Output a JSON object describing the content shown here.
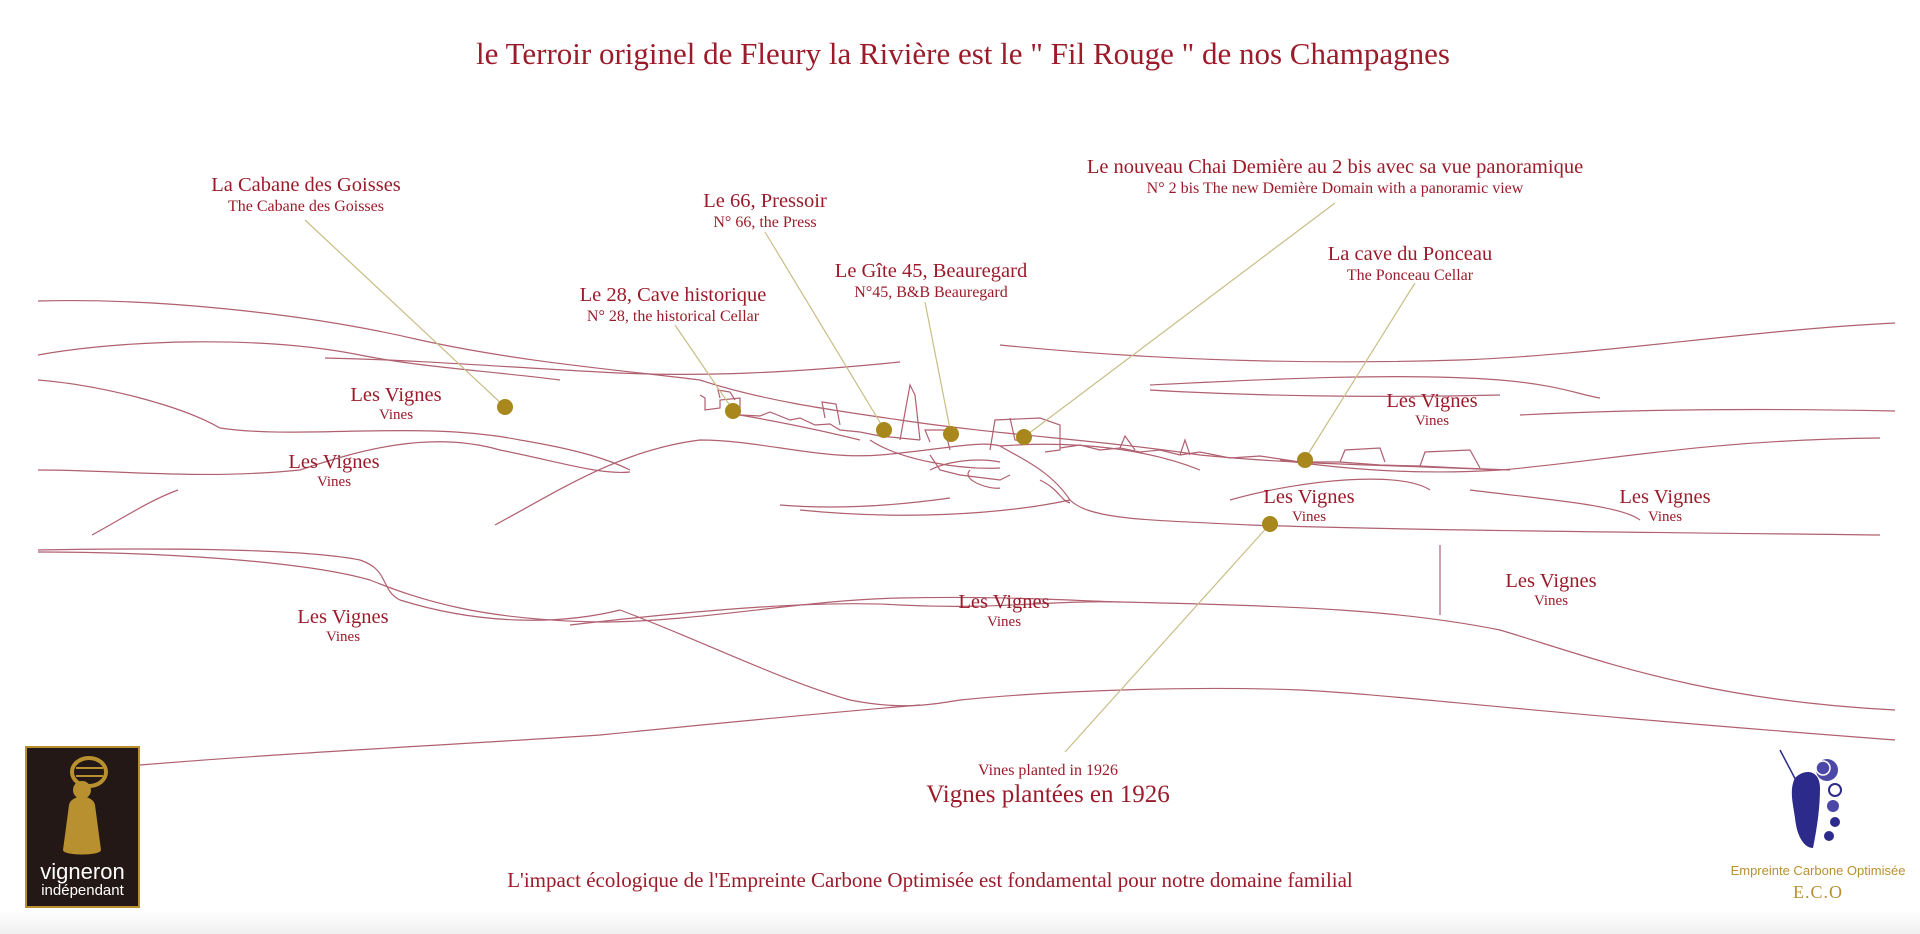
{
  "title": "le Terroir originel de Fleury la Rivière est le \" Fil Rouge \" de nos Champagnes",
  "colors": {
    "text": "#9b1b2a",
    "line": "#b06070",
    "leader": "#c9bd86",
    "dot": "#a8881c",
    "badge_bg": "#231815",
    "badge_accent": "#b8902f",
    "eco_blue": "#2c2a8a"
  },
  "places": [
    {
      "name": "La Cabane des Goisses",
      "sub": "The Cabane des Goisses"
    },
    {
      "name": "Le 66, Pressoir",
      "sub": "N° 66, the Press"
    },
    {
      "name": "Le nouveau Chai Demière au 2 bis avec sa vue panoramique",
      "sub": "N° 2 bis The new Demière Domain with a panoramic view"
    },
    {
      "name": "La cave du Ponceau",
      "sub": "The Ponceau Cellar"
    },
    {
      "name": "Le Gîte 45, Beauregard",
      "sub": "N°45, B&B Beauregard"
    },
    {
      "name": "Le 28, Cave historique",
      "sub": "N° 28, the historical Cellar"
    }
  ],
  "vines": [
    {
      "name": "Les Vignes",
      "sub": "Vines"
    },
    {
      "name": "Les Vignes",
      "sub": "Vines"
    },
    {
      "name": "Les Vignes",
      "sub": "Vines"
    },
    {
      "name": "Les Vignes",
      "sub": "Vines"
    },
    {
      "name": "Les Vignes",
      "sub": "Vines"
    },
    {
      "name": "Les Vignes",
      "sub": "Vines"
    },
    {
      "name": "Les Vignes",
      "sub": "Vines"
    },
    {
      "name": "Les Vignes",
      "sub": "Vines"
    }
  ],
  "planted": {
    "sub": "Vines planted in 1926",
    "name": "Vignes plantées en 1926"
  },
  "footer": "L'impact écologique de l'Empreinte Carbone Optimisée est fondamental pour notre domaine familial",
  "badge": {
    "line1": "vigneron",
    "line2": "indépendant",
    "icon": "winemaker-barrel-icon"
  },
  "eco": {
    "line1": "Empreinte Carbone Optimisée",
    "line2": "E.C.O",
    "icon": "grape-cluster-icon"
  }
}
